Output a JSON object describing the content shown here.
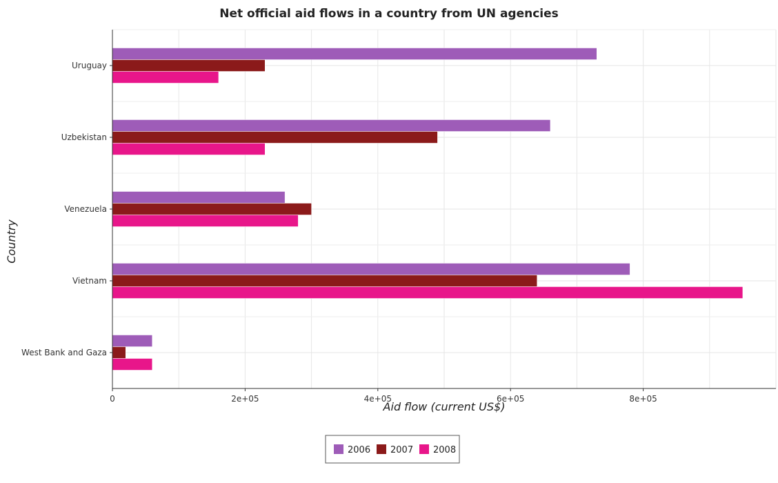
{
  "chart_data": {
    "type": "bar",
    "orientation": "horizontal",
    "title": "Net official aid flows in a country from UN agencies",
    "xlabel": "Aid flow (current US$)",
    "ylabel": "Country",
    "categories": [
      "Uruguay",
      "Uzbekistan",
      "Venezuela",
      "Vietnam",
      "West Bank and Gaza"
    ],
    "series": [
      {
        "name": "2006",
        "color": "#9e5cb8",
        "values": [
          730000,
          660000,
          260000,
          780000,
          60000
        ]
      },
      {
        "name": "2007",
        "color": "#8b1a1a",
        "values": [
          230000,
          490000,
          300000,
          640000,
          20000
        ]
      },
      {
        "name": "2008",
        "color": "#e8168a",
        "values": [
          160000,
          230000,
          280000,
          950000,
          60000
        ]
      }
    ],
    "xlim": [
      0,
      1000000
    ],
    "xticks": [
      0,
      200000,
      400000,
      600000,
      800000
    ],
    "xtick_labels": [
      "0",
      "2e+05",
      "4e+05",
      "6e+05",
      "8e+05"
    ],
    "grid": true,
    "legend_position": "bottom-center"
  }
}
